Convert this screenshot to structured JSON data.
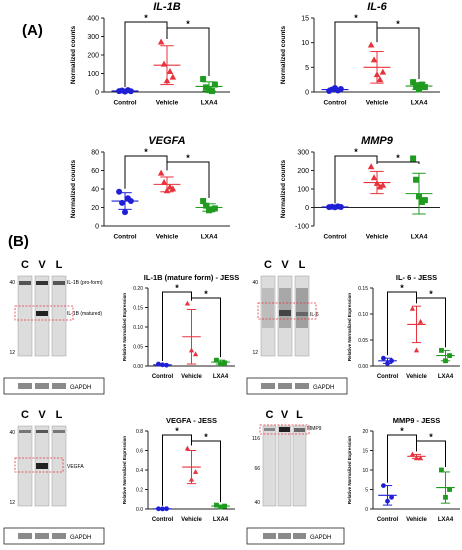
{
  "panel_labels": {
    "a": "(A)",
    "b": "(B)"
  },
  "colors": {
    "control": "#1f1fd6",
    "vehicle": "#e8323c",
    "lxa4": "#1f9b1f",
    "axis": "#222222",
    "box": "#e8323c"
  },
  "chart_data": [
    {
      "type": "scatter",
      "id": "il1b",
      "title": "IL-1B",
      "ylabel": "Normalized counts",
      "categories": [
        "Control",
        "Vehicle",
        "LXA4"
      ],
      "ylim": [
        0,
        400
      ],
      "yticks": [
        "0",
        "100",
        "200",
        "300",
        "400"
      ],
      "points": [
        [
          5,
          8,
          2,
          10,
          4
        ],
        [
          270,
          150,
          60,
          110,
          80
        ],
        [
          70,
          25,
          10,
          5,
          40
        ]
      ],
      "mean": [
        6,
        145,
        30
      ],
      "sd": [
        4,
        105,
        25
      ],
      "significance": [
        {
          "pair": [
            0,
            1
          ],
          "label": "*"
        },
        {
          "pair": [
            1,
            2
          ],
          "label": "*"
        }
      ]
    },
    {
      "type": "scatter",
      "id": "il6",
      "title": "IL-6",
      "ylabel": "Normalized counts",
      "categories": [
        "Control",
        "Vehicle",
        "LXA4"
      ],
      "ylim": [
        0,
        15
      ],
      "yticks": [
        "0",
        "5",
        "10",
        "15"
      ],
      "points": [
        [
          0.2,
          0.5,
          0.8,
          0.3,
          0.6
        ],
        [
          9.5,
          6.5,
          3.5,
          2.5,
          4.0
        ],
        [
          2.0,
          1.2,
          0.5,
          1.5,
          1.0
        ]
      ],
      "mean": [
        0.5,
        5.0,
        1.2
      ],
      "sd": [
        0.3,
        3.2,
        0.7
      ],
      "significance": [
        {
          "pair": [
            0,
            1
          ],
          "label": "*"
        },
        {
          "pair": [
            1,
            2
          ],
          "label": "*"
        }
      ]
    },
    {
      "type": "scatter",
      "id": "vegfa",
      "title": "VEGFA",
      "ylabel": "Normalized counts",
      "categories": [
        "Control",
        "Vehicle",
        "LXA4"
      ],
      "ylim": [
        0,
        80
      ],
      "yticks": [
        "0",
        "20",
        "40",
        "60",
        "80"
      ],
      "points": [
        [
          37,
          25,
          15,
          30,
          27
        ],
        [
          57,
          47,
          38,
          42,
          40
        ],
        [
          27,
          22,
          17,
          18,
          19
        ]
      ],
      "mean": [
        27,
        45,
        20
      ],
      "sd": [
        9,
        8,
        4
      ],
      "significance": [
        {
          "pair": [
            0,
            1
          ],
          "label": "*"
        },
        {
          "pair": [
            1,
            2
          ],
          "label": "*"
        }
      ]
    },
    {
      "type": "scatter",
      "id": "mmp9",
      "title": "MMP9",
      "ylabel": "Normalized counts",
      "categories": [
        "Control",
        "Vehicle",
        "LXA4"
      ],
      "ylim": [
        -100,
        300
      ],
      "yticks": [
        "-100",
        "0",
        "100",
        "200",
        "300"
      ],
      "points": [
        [
          2,
          4,
          1,
          6,
          3
        ],
        [
          220,
          160,
          130,
          110,
          120
        ],
        [
          265,
          150,
          60,
          30,
          40
        ]
      ],
      "mean": [
        3,
        135,
        75
      ],
      "sd": [
        2,
        60,
        110
      ],
      "significance": [
        {
          "pair": [
            0,
            1
          ],
          "label": "*"
        },
        {
          "pair": [
            1,
            2
          ],
          "label": "*"
        }
      ]
    },
    {
      "type": "scatter",
      "id": "il1b_jess",
      "title": "IL-1B (mature form) - JESS",
      "ylabel": "Relative Normalized Expression",
      "categories": [
        "Control",
        "Vehicle",
        "LXA4"
      ],
      "ylim": [
        0,
        0.2
      ],
      "yticks": [
        "0.00",
        "0.05",
        "0.10",
        "0.15",
        "0.20"
      ],
      "points": [
        [
          0.005,
          0.003,
          0.002
        ],
        [
          0.16,
          0.04,
          0.03
        ],
        [
          0.015,
          0.006,
          0.008
        ]
      ],
      "mean": [
        0.003,
        0.075,
        0.01
      ],
      "sd": [
        0.002,
        0.07,
        0.005
      ],
      "significance": [
        {
          "pair": [
            0,
            1
          ],
          "label": "*"
        },
        {
          "pair": [
            1,
            2
          ],
          "label": "*"
        }
      ]
    },
    {
      "type": "scatter",
      "id": "il6_jess",
      "title": "IL- 6 - JESS",
      "ylabel": "Relative Normalized Expression",
      "categories": [
        "Control",
        "Vehicle",
        "LXA4"
      ],
      "ylim": [
        0,
        0.15
      ],
      "yticks": [
        "0.00",
        "0.05",
        "0.10",
        "0.15"
      ],
      "points": [
        [
          0.015,
          0.005,
          0.01
        ],
        [
          0.11,
          0.03,
          0.085
        ],
        [
          0.03,
          0.01,
          0.02
        ]
      ],
      "mean": [
        0.01,
        0.08,
        0.02
      ],
      "sd": [
        0.005,
        0.035,
        0.01
      ],
      "significance": [
        {
          "pair": [
            0,
            1
          ],
          "label": "*"
        },
        {
          "pair": [
            1,
            2
          ],
          "label": "*"
        }
      ]
    },
    {
      "type": "scatter",
      "id": "vegfa_jess",
      "title": "VEGFA - JESS",
      "ylabel": "Relative Normalized Expression",
      "categories": [
        "Control",
        "Vehicle",
        "LXA4"
      ],
      "ylim": [
        0,
        0.8
      ],
      "yticks": [
        "0.0",
        "0.2",
        "0.4",
        "0.6",
        "0.8"
      ],
      "points": [
        [
          0.002,
          0.001,
          0.003
        ],
        [
          0.62,
          0.3,
          0.38
        ],
        [
          0.04,
          0.02,
          0.03
        ]
      ],
      "mean": [
        0.002,
        0.43,
        0.03
      ],
      "sd": [
        0.001,
        0.17,
        0.01
      ],
      "significance": [
        {
          "pair": [
            0,
            1
          ],
          "label": "*"
        },
        {
          "pair": [
            1,
            2
          ],
          "label": "*"
        }
      ]
    },
    {
      "type": "scatter",
      "id": "mmp9_jess",
      "title": "MMP9 - JESS",
      "ylabel": "Relative Normalized Expression",
      "categories": [
        "Control",
        "Vehicle",
        "LXA4"
      ],
      "ylim": [
        0,
        20
      ],
      "yticks": [
        "0",
        "5",
        "10",
        "15",
        "20"
      ],
      "points": [
        [
          6,
          2,
          3
        ],
        [
          14,
          13,
          13
        ],
        [
          10,
          3,
          5
        ]
      ],
      "mean": [
        3.5,
        13.5,
        5.5
      ],
      "sd": [
        2.5,
        0.5,
        4
      ],
      "significance": [
        {
          "pair": [
            0,
            1
          ],
          "label": "*"
        },
        {
          "pair": [
            1,
            2
          ],
          "label": "*"
        }
      ]
    }
  ],
  "blots": [
    {
      "id": "il1b",
      "lanes": [
        "C",
        "V",
        "L"
      ],
      "markers": [
        "40",
        "12"
      ],
      "bands": [
        "IL-1B (pro-form)",
        "IL-1B (matured)"
      ],
      "loading": "GAPDH"
    },
    {
      "id": "il6",
      "lanes": [
        "C",
        "V",
        "L"
      ],
      "markers": [
        "40",
        "12"
      ],
      "bands": [
        "IL-6"
      ],
      "loading": "GAPDH"
    },
    {
      "id": "vegfa",
      "lanes": [
        "C",
        "V",
        "L"
      ],
      "markers": [
        "40",
        "12"
      ],
      "bands": [
        "VEGFA"
      ],
      "loading": "GAPDH"
    },
    {
      "id": "mmp9",
      "lanes": [
        "C",
        "V",
        "L"
      ],
      "markers": [
        "116",
        "66",
        "40"
      ],
      "bands": [
        "MMP9"
      ],
      "loading": "GAPDH"
    }
  ]
}
